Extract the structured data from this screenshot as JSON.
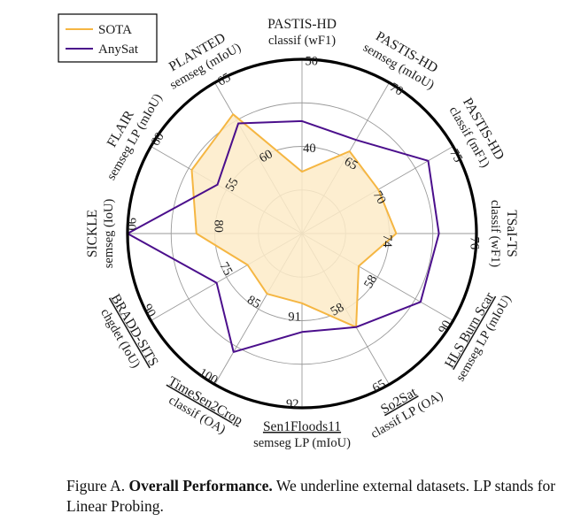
{
  "chart_data": {
    "type": "radar",
    "series": [
      {
        "name": "SOTA",
        "color": "#f5b642",
        "fill": "#fdebc8"
      },
      {
        "name": "AnySat",
        "color": "#4b0f8c"
      }
    ],
    "axes": [
      {
        "name": "PASTIS-HD",
        "task": "classif (wF1)",
        "underline": false,
        "ticks": [
          "40",
          "50"
        ],
        "sota": 0.355,
        "anysat": 0.645
      },
      {
        "name": "PASTIS-HD",
        "task": "semseg (mIoU)",
        "underline": false,
        "ticks": [
          "65",
          "70"
        ],
        "sota": 0.545,
        "anysat": 0.62
      },
      {
        "name": "PASTIS-HD",
        "task": "classif (mF1)",
        "underline": false,
        "ticks": [
          "70",
          "75"
        ],
        "sota": 0.505,
        "anysat": 0.835
      },
      {
        "name": "TSaI-TS",
        "task": "classif (wF1)",
        "underline": false,
        "ticks": [
          "74",
          "76"
        ],
        "sota": 0.54,
        "anysat": 0.785
      },
      {
        "name": "HLS Burn Scar",
        "task": "semseg LP (mIoU)",
        "underline": true,
        "ticks": [
          "58",
          "90"
        ],
        "sota": 0.375,
        "anysat": 0.785
      },
      {
        "name": "So2Sat",
        "task": "classif LP (OA)",
        "underline": true,
        "ticks": [
          "58",
          "65"
        ],
        "sota": 0.62,
        "anysat": 0.62
      },
      {
        "name": "Sen1Floods11",
        "task": "semseg LP (mIoU)",
        "underline": true,
        "ticks": [
          "91",
          "92"
        ],
        "sota": 0.4,
        "anysat": 0.565
      },
      {
        "name": "TimeSen2Crop",
        "task": "classif (OA)",
        "underline": true,
        "ticks": [
          "85",
          "100"
        ],
        "sota": 0.4,
        "anysat": 0.785
      },
      {
        "name": "BRADD-SITS",
        "task": "chgdet (IoU)",
        "underline": true,
        "ticks": [
          "75",
          "90"
        ],
        "sota": 0.36,
        "anysat": 0.565
      },
      {
        "name": "SICKLE",
        "task": "semseg (IoU)",
        "underline": false,
        "ticks": [
          "80",
          "90"
        ],
        "sota": 0.605,
        "anysat": 1.0
      },
      {
        "name": "FLAIR",
        "task": "semseg LP (mIoU)",
        "underline": false,
        "ticks": [
          "55",
          "60"
        ],
        "sota": 0.73,
        "anysat": 0.56
      },
      {
        "name": "PLANTED",
        "task": "semseg (mIoU)",
        "underline": false,
        "ticks": [
          "60",
          "65"
        ],
        "sota": 0.79,
        "anysat": 0.73
      }
    ],
    "grid": true,
    "legend_position": "top-left"
  },
  "caption": {
    "prefix": "Figure A.",
    "title": "Overall Performance.",
    "text": "We underline external datasets. LP stands for Linear Probing."
  }
}
